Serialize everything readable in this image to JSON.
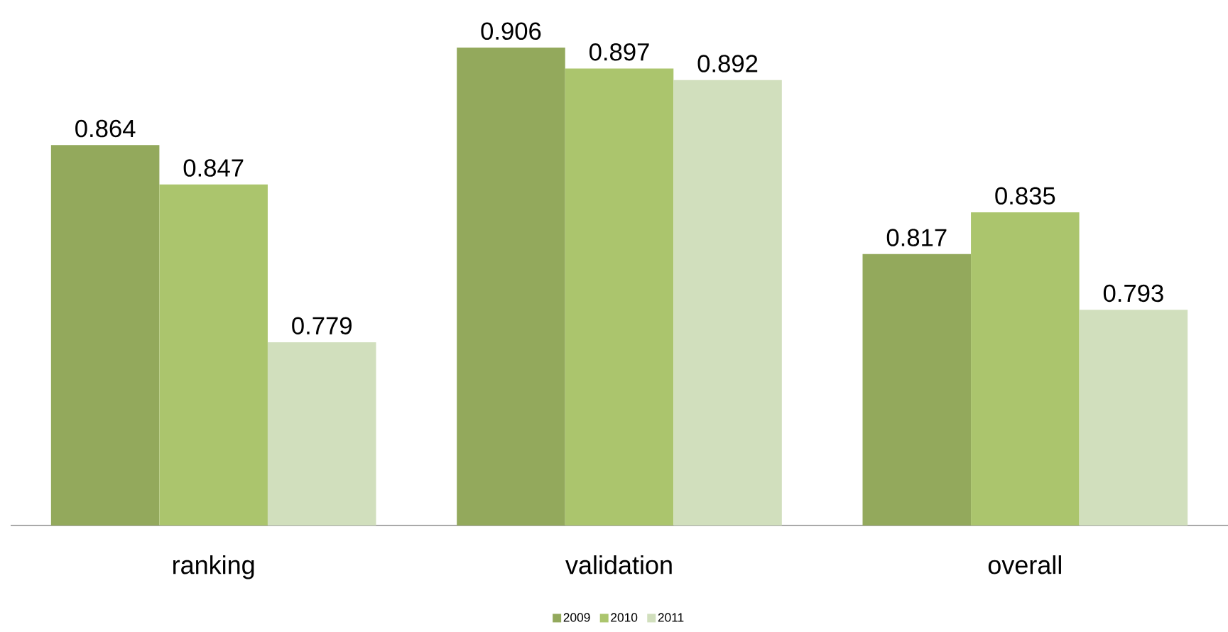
{
  "chart_data": {
    "type": "bar",
    "categories": [
      "ranking",
      "validation",
      "overall"
    ],
    "series": [
      {
        "name": "2009",
        "color": "#93a95c",
        "values": [
          0.864,
          0.906,
          0.817
        ]
      },
      {
        "name": "2010",
        "color": "#abc56d",
        "values": [
          0.847,
          0.897,
          0.835
        ]
      },
      {
        "name": "2011",
        "color": "#d1dfbd",
        "values": [
          0.779,
          0.892,
          0.793
        ]
      }
    ],
    "ylim": [
      0.7,
      0.906
    ],
    "data_labels": true,
    "legend": "bottom",
    "grid": false
  }
}
